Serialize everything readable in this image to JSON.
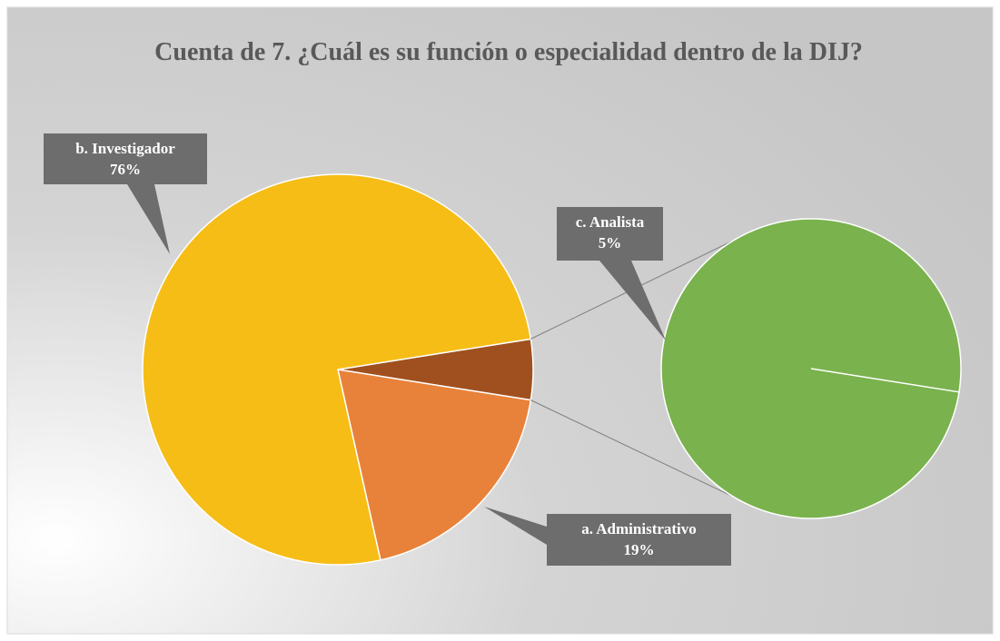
{
  "chart_data": {
    "type": "pie_of_pie",
    "title": "Cuenta de 7. ¿Cuál es su función o especialidad dentro de la DIJ?",
    "categories": [
      "a. Administrativo",
      "b. Investigador",
      "c. Analista"
    ],
    "values": [
      19,
      76,
      5
    ],
    "value_labels": [
      "19%",
      "76%",
      "5%"
    ],
    "colors": [
      "#e8823a",
      "#f6bd17",
      "#7ab24e"
    ],
    "other_color": "#a0501e"
  }
}
